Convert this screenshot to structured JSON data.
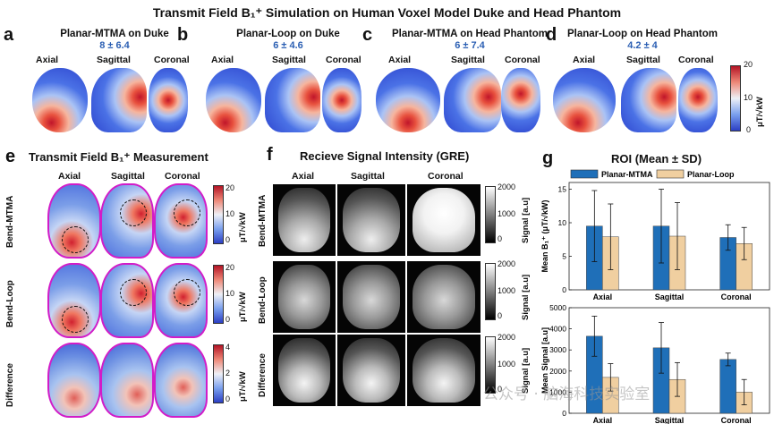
{
  "figure_title": "Transmit Field B₁⁺ Simulation on Human Voxel Model Duke and Head Phantom",
  "panels_top": [
    {
      "letter": "a",
      "title": "Planar-MTMA on Duke",
      "value": "8 ± 6.4"
    },
    {
      "letter": "b",
      "title": "Planar-Loop on Duke",
      "value": "6 ± 4.6"
    },
    {
      "letter": "c",
      "title": "Planar-MTMA on Head Phantom",
      "value": "6 ± 7.4"
    },
    {
      "letter": "d",
      "title": "Planar-Loop on Head Phantom",
      "value": "4.2 ± 4"
    }
  ],
  "views": [
    "Axial",
    "Sagittal",
    "Coronal"
  ],
  "colorbar_top": {
    "min": "0",
    "mid": "10",
    "max": "20",
    "unit": "μT/√kW"
  },
  "panel_e": {
    "letter": "e",
    "title": "Transmit Field B₁⁺ Measurement",
    "rows": [
      "Bend-MTMA",
      "Bend-Loop",
      "Difference"
    ],
    "colorbars": [
      {
        "top": "20",
        "mid": "10",
        "bot": "0",
        "unit": "μT/√kW"
      },
      {
        "top": "20",
        "mid": "10",
        "bot": "0",
        "unit": "μT/√kW"
      },
      {
        "top": "4",
        "mid": "2",
        "bot": "0",
        "unit": "μT/√kW"
      }
    ]
  },
  "panel_f": {
    "letter": "f",
    "title": "Recieve Signal Intensity (GRE)",
    "rows": [
      "Bend-MTMA",
      "Bend-Loop",
      "Difference"
    ],
    "colorbars": [
      {
        "top": "2000",
        "mid": "1000",
        "bot": "0",
        "unit": "Signal [a.u]"
      },
      {
        "top": "2000",
        "mid": "1000",
        "bot": "0",
        "unit": "Signal [a.u]"
      },
      {
        "top": "2000",
        "mid": "1000",
        "bot": "0",
        "unit": "Signal [a.u]"
      }
    ]
  },
  "panel_g": {
    "letter": "g",
    "title": "ROI (Mean ± SD)"
  },
  "watermark": "公众号 · 脑海科技实验室",
  "chart_data": [
    {
      "type": "bar",
      "title": "ROI (Mean ± SD)",
      "categories": [
        "Axial",
        "Sagittal",
        "Coronal"
      ],
      "series": [
        {
          "name": "Planar-MTMA",
          "color": "#1f6fb8",
          "values": [
            9.5,
            9.5,
            7.8
          ],
          "sd": [
            5.3,
            5.5,
            1.9
          ]
        },
        {
          "name": "Planar-Loop",
          "color": "#f0cfa0",
          "values": [
            7.9,
            8.0,
            6.9
          ],
          "sd": [
            4.9,
            5.0,
            2.4
          ]
        }
      ],
      "ylabel": "Mean B₁⁺ (μT/√kW)",
      "ylim": [
        0,
        16
      ],
      "yticks": [
        "0",
        "5",
        "10",
        "15"
      ]
    },
    {
      "type": "bar",
      "categories": [
        "Axial",
        "Sagittal",
        "Coronal"
      ],
      "series": [
        {
          "name": "Planar-MTMA",
          "color": "#1f6fb8",
          "values": [
            3650,
            3100,
            2550
          ],
          "sd": [
            950,
            1200,
            300
          ]
        },
        {
          "name": "Planar-Loop",
          "color": "#f0cfa0",
          "values": [
            1700,
            1600,
            1000
          ],
          "sd": [
            650,
            800,
            600
          ]
        }
      ],
      "ylabel": "Mean Signal [a.u]",
      "ylim": [
        0,
        5000
      ],
      "yticks": [
        "0",
        "1000",
        "2000",
        "3000",
        "4000",
        "5000"
      ]
    }
  ]
}
